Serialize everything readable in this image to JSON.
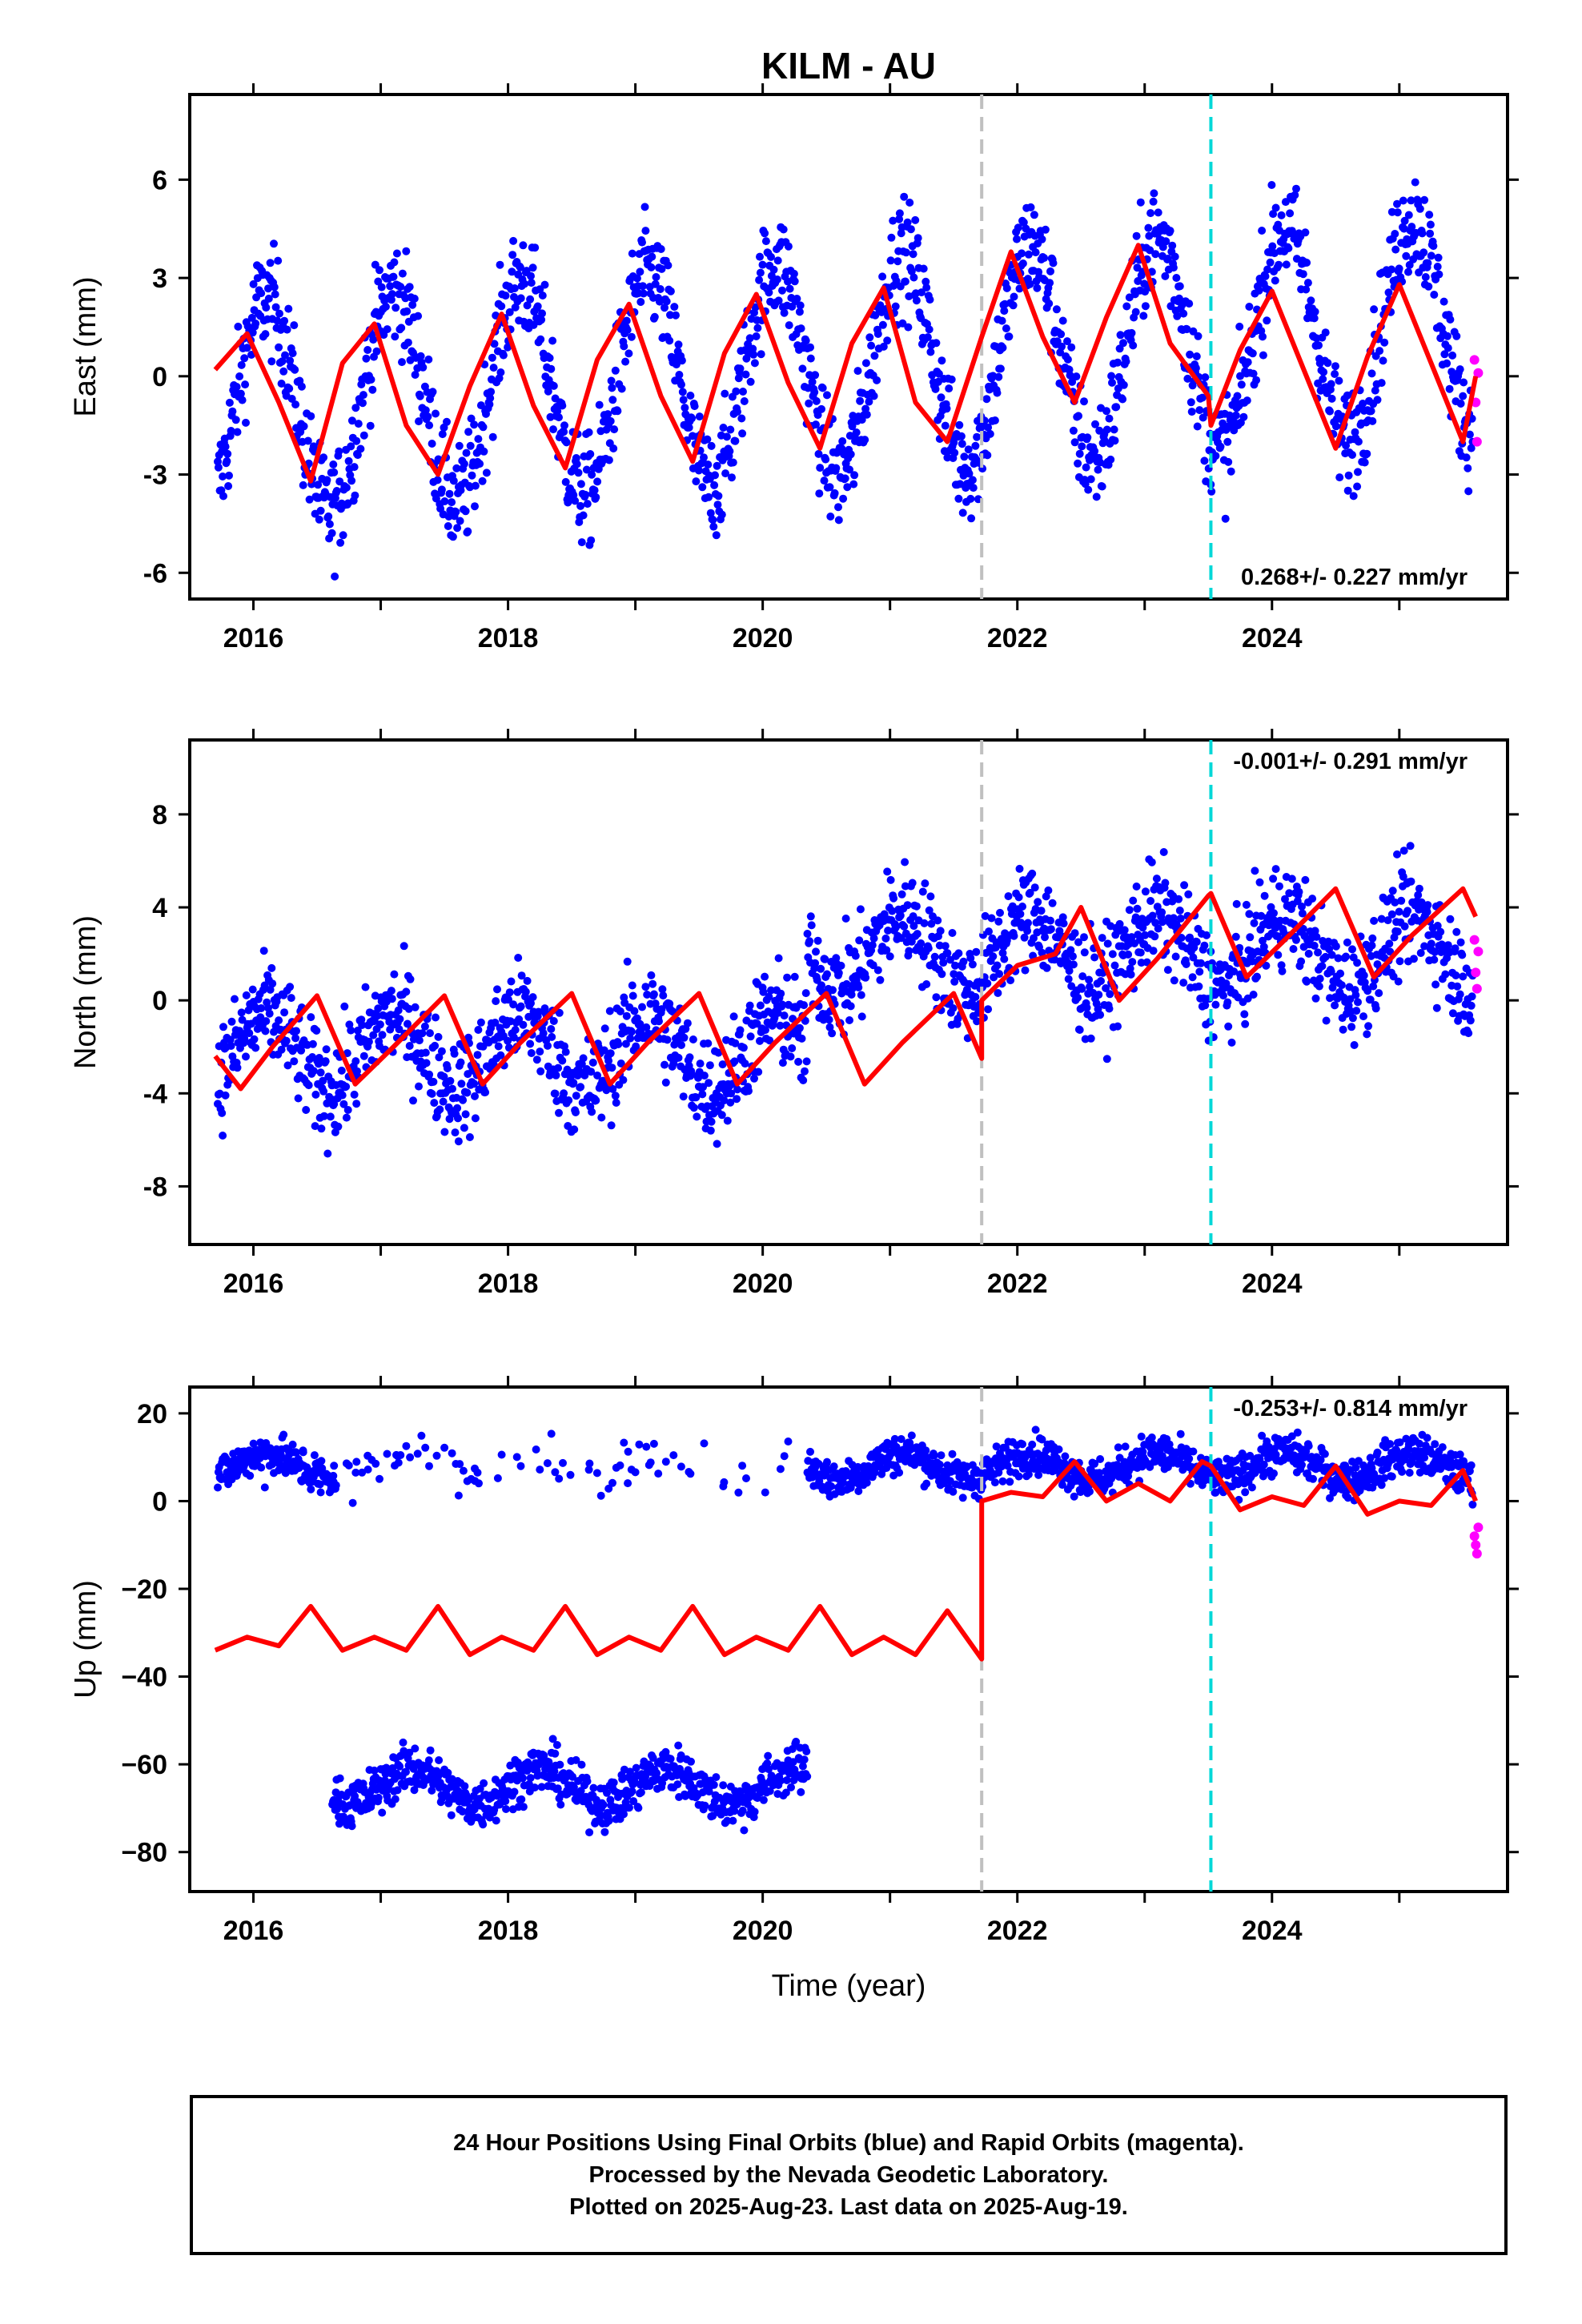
{
  "chart_data": [
    {
      "type": "scatter",
      "title": "KILM - AU",
      "ylabel": "East (mm)",
      "xlabel": "",
      "xlim": [
        2015.5,
        2025.85
      ],
      "ylim": [
        -6.8,
        8.6
      ],
      "xticks": [
        2016,
        2018,
        2020,
        2022,
        2024
      ],
      "xtick_labels": [
        "2016",
        "2018",
        "2020",
        "2022",
        "2024"
      ],
      "yticks": [
        -6,
        -3,
        0,
        3,
        6
      ],
      "ytick_labels": [
        "-6",
        "-3",
        "0",
        "3",
        "6"
      ],
      "rate_label": "0.268+/- 0.227 mm/yr",
      "grid": false,
      "vlines": [
        {
          "x": 2021.72,
          "color": "#c0c0c0"
        },
        {
          "x": 2023.52,
          "color": "#00d8d8"
        }
      ],
      "model_color": "#ff0000",
      "final_color": "#0000ff",
      "rapid_color": "#ff00ff",
      "model": {
        "x": [
          2015.7,
          2015.95,
          2016.2,
          2016.45,
          2016.7,
          2016.95,
          2017.2,
          2017.45,
          2017.7,
          2017.95,
          2018.2,
          2018.45,
          2018.7,
          2018.95,
          2019.2,
          2019.45,
          2019.7,
          2019.95,
          2020.2,
          2020.45,
          2020.7,
          2020.95,
          2021.2,
          2021.45,
          2021.72,
          2021.72,
          2021.95,
          2022.2,
          2022.45,
          2022.7,
          2022.95,
          2023.2,
          2023.5,
          2023.52,
          2023.75,
          2024.0,
          2024.25,
          2024.5,
          2024.75,
          2025.0,
          2025.25,
          2025.5,
          2025.6
        ],
        "y": [
          0.2,
          1.3,
          -0.8,
          -3.2,
          0.4,
          1.6,
          -1.5,
          -3.0,
          -0.3,
          1.9,
          -0.9,
          -2.8,
          0.5,
          2.2,
          -0.6,
          -2.6,
          0.7,
          2.5,
          -0.2,
          -2.2,
          1.0,
          2.7,
          -0.8,
          -2.0,
          1.2,
          1.2,
          3.8,
          1.2,
          -0.8,
          1.8,
          4.0,
          1.0,
          -0.6,
          -1.5,
          0.8,
          2.6,
          0.2,
          -2.2,
          0.6,
          2.8,
          0.4,
          -2.0,
          0.0
        ]
      },
      "final_series": {
        "amplitude": 3.3,
        "noise": 1.2,
        "trend": 0.268,
        "offset": 0.1,
        "jump": 0,
        "jump_at": 2021.72,
        "gap": null
      },
      "rapid_points": {
        "x": [
          2025.59,
          2025.6,
          2025.61,
          2025.62
        ],
        "y": [
          0.5,
          -0.8,
          -2.0,
          0.1
        ]
      }
    },
    {
      "type": "scatter",
      "title": "",
      "ylabel": "North (mm)",
      "xlabel": "",
      "xlim": [
        2015.5,
        2025.85
      ],
      "ylim": [
        -10.5,
        11.2
      ],
      "xticks": [
        2016,
        2018,
        2020,
        2022,
        2024
      ],
      "xtick_labels": [
        "2016",
        "2018",
        "2020",
        "2022",
        "2024"
      ],
      "yticks": [
        -8,
        -4,
        0,
        4,
        8
      ],
      "ytick_labels": [
        "-8",
        "-4",
        "0",
        "4",
        "8"
      ],
      "rate_label": "-0.001+/- 0.291 mm/yr",
      "grid": false,
      "vlines": [
        {
          "x": 2021.72,
          "color": "#c0c0c0"
        },
        {
          "x": 2023.52,
          "color": "#00d8d8"
        }
      ],
      "model_color": "#ff0000",
      "final_color": "#0000ff",
      "rapid_color": "#ff00ff",
      "model": {
        "x": [
          2015.7,
          2015.9,
          2016.15,
          2016.5,
          2016.8,
          2017.1,
          2017.5,
          2017.8,
          2018.1,
          2018.5,
          2018.8,
          2019.1,
          2019.5,
          2019.8,
          2020.1,
          2020.5,
          2020.8,
          2021.1,
          2021.5,
          2021.72,
          2021.72,
          2022.0,
          2022.3,
          2022.5,
          2022.8,
          2023.1,
          2023.5,
          2023.52,
          2023.8,
          2024.1,
          2024.5,
          2024.8,
          2025.1,
          2025.5,
          2025.6
        ],
        "y": [
          -2.4,
          -3.8,
          -2.0,
          0.2,
          -3.6,
          -2.0,
          0.2,
          -3.6,
          -1.8,
          0.3,
          -3.6,
          -1.8,
          0.3,
          -3.6,
          -1.8,
          0.3,
          -3.6,
          -1.8,
          0.3,
          -2.5,
          0.0,
          1.5,
          2.0,
          4.0,
          0.0,
          1.8,
          4.5,
          4.6,
          1.0,
          2.6,
          4.8,
          1.0,
          2.8,
          4.8,
          3.6
        ]
      },
      "final_series": {
        "amplitude": 1.6,
        "noise": 1.6,
        "trend": 0,
        "offset": -2.2,
        "jump": 4.3,
        "jump_at": 2020.35,
        "gap": null
      },
      "rapid_points": {
        "x": [
          2025.59,
          2025.6,
          2025.61,
          2025.62
        ],
        "y": [
          2.6,
          1.2,
          0.5,
          2.1
        ]
      }
    },
    {
      "type": "scatter",
      "title": "",
      "ylabel": "Up (mm)",
      "xlabel": "Time (year)",
      "xlim": [
        2015.5,
        2025.85
      ],
      "ylim": [
        -89,
        26
      ],
      "xticks": [
        2016,
        2018,
        2020,
        2022,
        2024
      ],
      "xtick_labels": [
        "2016",
        "2018",
        "2020",
        "2022",
        "2024"
      ],
      "yticks": [
        -80,
        -60,
        -40,
        -20,
        0,
        20
      ],
      "ytick_labels": [
        "−80",
        "−60",
        "−40",
        "−20",
        "0",
        "20"
      ],
      "rate_label": "-0.253+/- 0.814 mm/yr",
      "grid": false,
      "vlines": [
        {
          "x": 2021.72,
          "color": "#c0c0c0"
        },
        {
          "x": 2023.52,
          "color": "#00d8d8"
        }
      ],
      "model_color": "#ff0000",
      "final_color": "#0000ff",
      "rapid_color": "#ff00ff",
      "model": {
        "x": [
          2015.7,
          2015.95,
          2016.2,
          2016.45,
          2016.7,
          2016.95,
          2017.2,
          2017.45,
          2017.7,
          2017.95,
          2018.2,
          2018.45,
          2018.7,
          2018.95,
          2019.2,
          2019.45,
          2019.7,
          2019.95,
          2020.2,
          2020.45,
          2020.7,
          2020.95,
          2021.2,
          2021.45,
          2021.72,
          2021.72,
          2021.95,
          2022.2,
          2022.45,
          2022.7,
          2022.95,
          2023.2,
          2023.45,
          2023.52,
          2023.75,
          2024.0,
          2024.25,
          2024.5,
          2024.75,
          2025.0,
          2025.25,
          2025.5,
          2025.6
        ],
        "y": [
          -34,
          -31,
          -33,
          -24,
          -34,
          -31,
          -34,
          -24,
          -35,
          -31,
          -34,
          -24,
          -35,
          -31,
          -34,
          -24,
          -35,
          -31,
          -34,
          -24,
          -35,
          -31,
          -35,
          -25,
          -36,
          0,
          2,
          1,
          9,
          0,
          4,
          0,
          9,
          8,
          -2,
          1,
          -1,
          8,
          -3,
          0,
          -1,
          7,
          0
        ]
      },
      "final_series": {
        "amplitude": 3.0,
        "noise": 3.2,
        "trend": 0,
        "offset": 8,
        "jump": 0,
        "jump_at": 2021.72,
        "gap": [
          2016.65,
          2020.35
        ]
      },
      "clusters": [
        {
          "x0": 2016.62,
          "x1": 2020.35,
          "center": -65,
          "amplitude": 4,
          "noise": 4
        },
        {
          "x0": 2016.0,
          "x1": 2020.25,
          "center": 8,
          "amplitude": 3,
          "noise": 4,
          "sparse": true
        }
      ],
      "rapid_points": {
        "x": [
          2025.59,
          2025.6,
          2025.61,
          2025.62
        ],
        "y": [
          -8,
          -10,
          -12,
          -6
        ]
      }
    }
  ],
  "caption": {
    "line1": "24 Hour Positions Using Final Orbits (blue) and Rapid Orbits (magenta).",
    "line2": "Processed by the Nevada Geodetic Laboratory.",
    "line3": "Plotted on 2025-Aug-23. Last data on 2025-Aug-19."
  }
}
